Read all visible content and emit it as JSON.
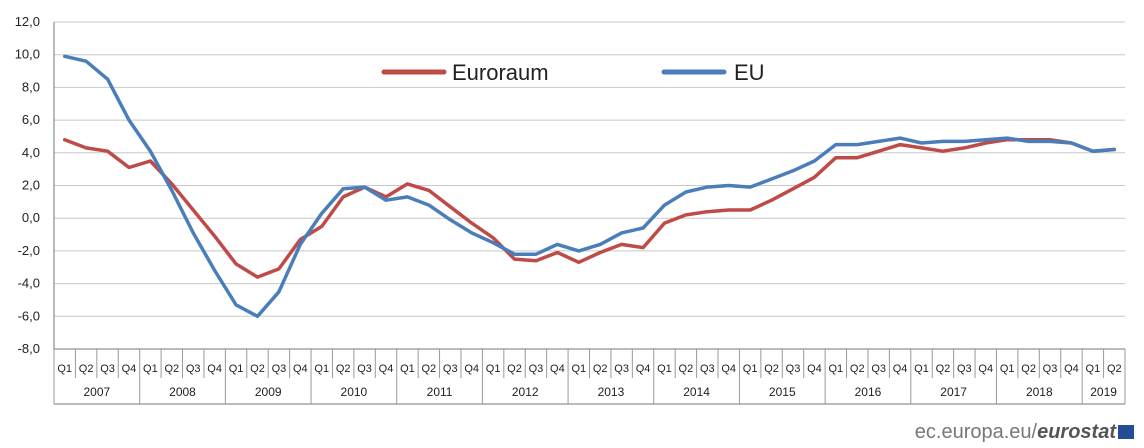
{
  "chart_data": {
    "type": "line",
    "ylim": [
      -8,
      12
    ],
    "yticks": [
      "12,0",
      "10,0",
      "8,0",
      "6,0",
      "4,0",
      "2,0",
      "0,0",
      "-2,0",
      "-4,0",
      "-6,0",
      "-8,0"
    ],
    "quarters": [
      "Q1",
      "Q2",
      "Q3",
      "Q4"
    ],
    "years": [
      "2007",
      "2008",
      "2009",
      "2010",
      "2011",
      "2012",
      "2013",
      "2014",
      "2015",
      "2016",
      "2017",
      "2018",
      "2019"
    ],
    "x": [
      "2007Q1",
      "2007Q2",
      "2007Q3",
      "2007Q4",
      "2008Q1",
      "2008Q2",
      "2008Q3",
      "2008Q4",
      "2009Q1",
      "2009Q2",
      "2009Q3",
      "2009Q4",
      "2010Q1",
      "2010Q2",
      "2010Q3",
      "2010Q4",
      "2011Q1",
      "2011Q2",
      "2011Q3",
      "2011Q4",
      "2012Q1",
      "2012Q2",
      "2012Q3",
      "2012Q4",
      "2013Q1",
      "2013Q2",
      "2013Q3",
      "2013Q4",
      "2014Q1",
      "2014Q2",
      "2014Q3",
      "2014Q4",
      "2015Q1",
      "2015Q2",
      "2015Q3",
      "2015Q4",
      "2016Q1",
      "2016Q2",
      "2016Q3",
      "2016Q4",
      "2017Q1",
      "2017Q2",
      "2017Q3",
      "2017Q4",
      "2018Q1",
      "2018Q2",
      "2018Q3",
      "2018Q4",
      "2019Q1",
      "2019Q2"
    ],
    "legend_position": "top-center",
    "series": [
      {
        "name": "Euroraum",
        "color": "#be4b48",
        "values": [
          4.8,
          4.3,
          4.1,
          3.1,
          3.5,
          2.1,
          0.5,
          -1.1,
          -2.8,
          -3.6,
          -3.1,
          -1.3,
          -0.5,
          1.3,
          1.9,
          1.3,
          2.1,
          1.7,
          0.7,
          -0.3,
          -1.2,
          -2.5,
          -2.6,
          -2.1,
          -2.7,
          -2.1,
          -1.6,
          -1.8,
          -0.3,
          0.2,
          0.4,
          0.5,
          0.5,
          1.1,
          1.8,
          2.5,
          3.7,
          3.7,
          4.1,
          4.5,
          4.3,
          4.1,
          4.3,
          4.6,
          4.8,
          4.8,
          4.8,
          4.6,
          4.1,
          4.2
        ]
      },
      {
        "name": "EU",
        "color": "#4a7ebb",
        "values": [
          9.9,
          9.6,
          8.5,
          6.0,
          4.1,
          1.7,
          -0.9,
          -3.2,
          -5.3,
          -6.0,
          -4.5,
          -1.6,
          0.3,
          1.8,
          1.9,
          1.1,
          1.3,
          0.8,
          -0.1,
          -0.9,
          -1.5,
          -2.2,
          -2.2,
          -1.6,
          -2.0,
          -1.6,
          -0.9,
          -0.6,
          0.8,
          1.6,
          1.9,
          2.0,
          1.9,
          2.4,
          2.9,
          3.5,
          4.5,
          4.5,
          4.7,
          4.9,
          4.6,
          4.7,
          4.7,
          4.8,
          4.9,
          4.7,
          4.7,
          4.6,
          4.1,
          4.2
        ]
      }
    ]
  },
  "footer": {
    "site": "ec.europa.eu/",
    "brand": "eurostat"
  }
}
